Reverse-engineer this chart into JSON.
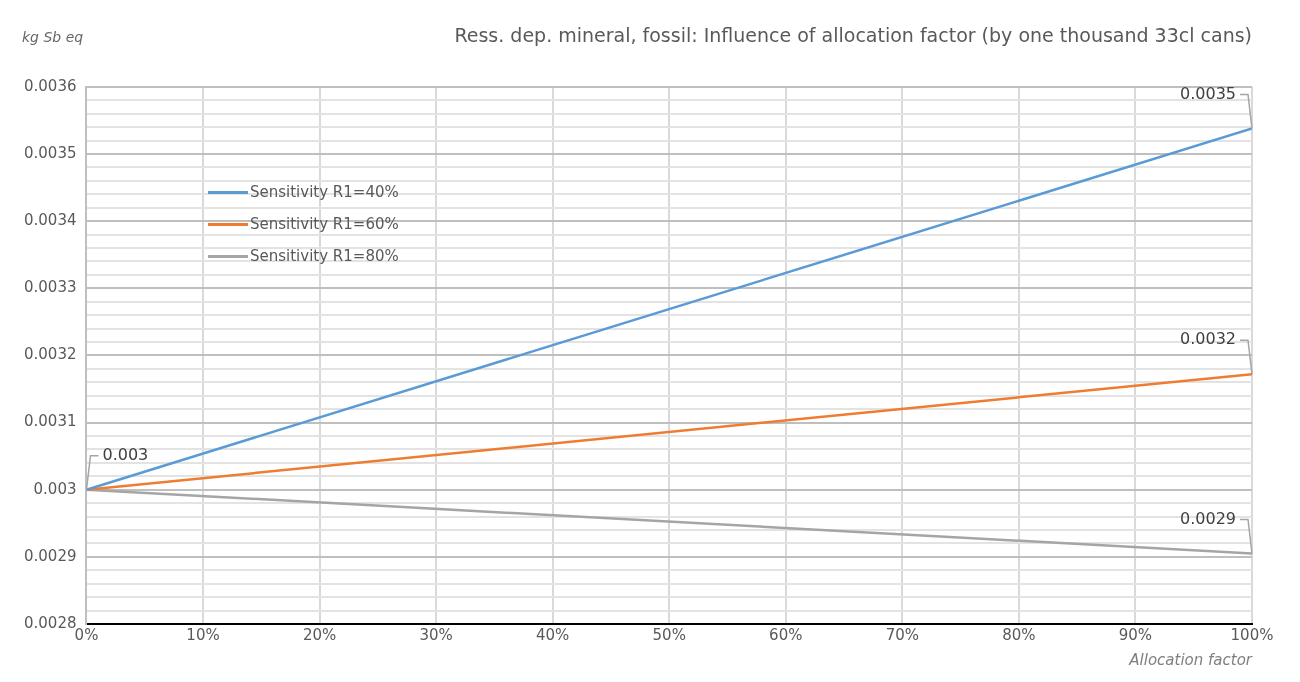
{
  "chart_data": {
    "type": "line",
    "title": "Ress. dep. mineral, fossil: Influence of allocation factor (by one thousand 33cl cans)",
    "xlabel": "Allocation factor",
    "ylabel": "kg Sb eq",
    "x": [
      0,
      100
    ],
    "series": [
      {
        "name": "Sensitivity R1=40%",
        "color": "#5b9bd5",
        "values": [
          0.003,
          0.003538
        ],
        "value_labels": [
          "0.003",
          "0.0035"
        ]
      },
      {
        "name": "Sensitivity R1=60%",
        "color": "#ed7d31",
        "values": [
          0.003,
          0.003172
        ],
        "value_labels": [
          null,
          "0.0032"
        ]
      },
      {
        "name": "Sensitivity R1=80%",
        "color": "#a5a5a5",
        "values": [
          0.003,
          0.002905
        ],
        "value_labels": [
          null,
          "0.0029"
        ]
      }
    ],
    "xlim": [
      0,
      100
    ],
    "xticks": [
      {
        "value": 0,
        "label": "0%"
      },
      {
        "value": 10,
        "label": "10%"
      },
      {
        "value": 20,
        "label": "20%"
      },
      {
        "value": 30,
        "label": "30%"
      },
      {
        "value": 40,
        "label": "40%"
      },
      {
        "value": 50,
        "label": "50%"
      },
      {
        "value": 60,
        "label": "60%"
      },
      {
        "value": 70,
        "label": "70%"
      },
      {
        "value": 80,
        "label": "80%"
      },
      {
        "value": 90,
        "label": "90%"
      },
      {
        "value": 100,
        "label": "100%"
      }
    ],
    "ylim": [
      0.0028,
      0.0036
    ],
    "yticks": [
      0.0028,
      {
        "value": 0.00282,
        "label": null
      },
      {
        "value": 0.00284,
        "label": null
      },
      {
        "value": 0.00286,
        "label": null
      },
      {
        "value": 0.00288,
        "label": null
      },
      0.0029,
      {
        "value": 0.00292,
        "label": null
      },
      {
        "value": 0.00294,
        "label": null
      },
      {
        "value": 0.00296,
        "label": null
      },
      {
        "value": 0.00298,
        "label": null
      },
      0.003,
      {
        "value": 0.00302,
        "label": null
      },
      {
        "value": 0.00304,
        "label": null
      },
      {
        "value": 0.00306,
        "label": null
      },
      {
        "value": 0.00308,
        "label": null
      },
      0.0031,
      {
        "value": 0.00312,
        "label": null
      },
      {
        "value": 0.00314,
        "label": null
      },
      {
        "value": 0.00316,
        "label": null
      },
      {
        "value": 0.00318,
        "label": null
      },
      0.0032,
      {
        "value": 0.00322,
        "label": null
      },
      {
        "value": 0.00324,
        "label": null
      },
      {
        "value": 0.00326,
        "label": null
      },
      {
        "value": 0.00328,
        "label": null
      },
      0.0033,
      {
        "value": 0.00332,
        "label": null
      },
      {
        "value": 0.00334,
        "label": null
      },
      {
        "value": 0.00336,
        "label": null
      },
      {
        "value": 0.00338,
        "label": null
      },
      0.0034,
      {
        "value": 0.00342,
        "label": null
      },
      {
        "value": 0.00344,
        "label": null
      },
      {
        "value": 0.00346,
        "label": null
      },
      {
        "value": 0.00348,
        "label": null
      },
      0.0035,
      {
        "value": 0.00352,
        "label": null
      },
      {
        "value": 0.00354,
        "label": null
      },
      {
        "value": 0.00356,
        "label": null
      },
      {
        "value": 0.00358,
        "label": null
      },
      0.0036
    ],
    "grid": true,
    "legend": "top left",
    "marker": "none",
    "line_style": "solid"
  }
}
